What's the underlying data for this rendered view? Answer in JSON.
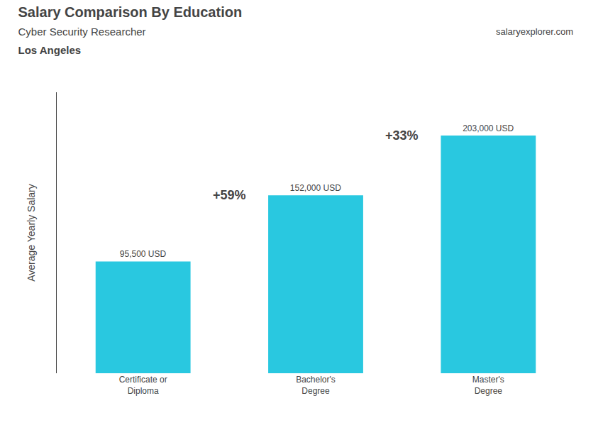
{
  "chart_data": {
    "type": "bar",
    "title": "Salary Comparison By Education",
    "subtitle": "Cyber Security Researcher",
    "location": "Los Angeles",
    "source": "salaryexplorer.com",
    "ylabel": "Average Yearly Salary",
    "categories": [
      "Certificate or\nDiploma",
      "Bachelor's\nDegree",
      "Master's\nDegree"
    ],
    "values": [
      95500,
      152000,
      203000
    ],
    "value_labels": [
      "95,500 USD",
      "152,000 USD",
      "203,000 USD"
    ],
    "annotations": [
      "+59%",
      "+33%"
    ],
    "color": "#29c8e0",
    "ylim": [
      0,
      240000
    ],
    "grid": false,
    "data_labels": true,
    "tick_labels": "x"
  }
}
